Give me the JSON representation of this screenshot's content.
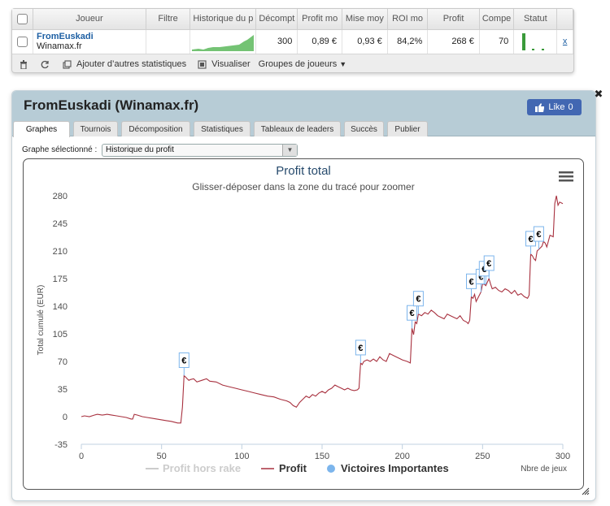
{
  "stats_table": {
    "headers": [
      "Joueur",
      "Filtre",
      "Historique du p",
      "Décompt",
      "Profit mo",
      "Mise moy",
      "ROI mo",
      "Profit",
      "Compe",
      "Statut"
    ],
    "row": {
      "player_name": "FromEuskadi",
      "player_site": "Winamax.fr",
      "decompte": "300",
      "profit_moyen": "0,89 €",
      "mise_moyenne": "0,93 €",
      "roi_moyen": "84,2%",
      "profit": "268 €",
      "competitions": "70",
      "remove": "x"
    },
    "toolbar": {
      "add_stats": "Ajouter d’autres statistiques",
      "visualize": "Visualiser",
      "groups": "Groupes de joueurs"
    }
  },
  "profile": {
    "title": "FromEuskadi (Winamax.fr)",
    "like_label": "Like",
    "like_count": "0",
    "tabs": [
      "Graphes",
      "Tournois",
      "Décomposition",
      "Statistiques",
      "Tableaux de leaders",
      "Succès",
      "Publier"
    ],
    "active_tab": "Graphes",
    "graph_select_label": "Graphe sélectionné :",
    "graph_select_value": "Historique du profit"
  },
  "colors": {
    "profit_line": "#a8313f",
    "victory_marker": "#7cb5ec",
    "axis_text": "#4d4d4d",
    "title": "#274b6d",
    "legend_hidden": "#cccccc",
    "header_bg": "#b7ccd6",
    "sparkline": "#3a9a3a",
    "facebook": "#4267b2"
  },
  "chart_data": {
    "type": "line",
    "title": "Profit total",
    "subtitle": "Glisser-déposer dans la zone du tracé pour zoomer",
    "xlabel": "Nbre de jeux",
    "ylabel": "Total cumulé (EUR)",
    "xlim": [
      0,
      300
    ],
    "ylim": [
      -35,
      280
    ],
    "x_ticks": [
      0,
      50,
      100,
      150,
      200,
      250,
      300
    ],
    "y_ticks": [
      -35,
      0,
      35,
      70,
      105,
      140,
      175,
      210,
      245,
      280
    ],
    "legend": [
      "Profit hors rake",
      "Profit",
      "Victoires Importantes"
    ],
    "legend_hidden": [
      "Profit hors rake"
    ],
    "marker_symbol": "€",
    "series": [
      {
        "name": "Profit",
        "points": [
          [
            0,
            0
          ],
          [
            2,
            1
          ],
          [
            5,
            0
          ],
          [
            8,
            2
          ],
          [
            10,
            3
          ],
          [
            13,
            2
          ],
          [
            16,
            3
          ],
          [
            19,
            2
          ],
          [
            22,
            1
          ],
          [
            25,
            0
          ],
          [
            28,
            -1
          ],
          [
            31,
            -3
          ],
          [
            32,
            -3
          ],
          [
            33,
            3
          ],
          [
            35,
            2
          ],
          [
            38,
            0
          ],
          [
            41,
            -1
          ],
          [
            44,
            -2
          ],
          [
            47,
            -3
          ],
          [
            50,
            -4
          ],
          [
            53,
            -5
          ],
          [
            56,
            -6
          ],
          [
            58,
            -7
          ],
          [
            60,
            -8
          ],
          [
            62,
            -8
          ],
          [
            63,
            12
          ],
          [
            64,
            52
          ],
          [
            65,
            50
          ],
          [
            66,
            48
          ],
          [
            67,
            46
          ],
          [
            68,
            47
          ],
          [
            70,
            48
          ],
          [
            72,
            44
          ],
          [
            75,
            46
          ],
          [
            78,
            48
          ],
          [
            80,
            45
          ],
          [
            84,
            44
          ],
          [
            88,
            40
          ],
          [
            92,
            38
          ],
          [
            96,
            36
          ],
          [
            100,
            34
          ],
          [
            104,
            32
          ],
          [
            108,
            30
          ],
          [
            112,
            28
          ],
          [
            116,
            26
          ],
          [
            120,
            25
          ],
          [
            124,
            22
          ],
          [
            128,
            20
          ],
          [
            130,
            18
          ],
          [
            132,
            14
          ],
          [
            134,
            12
          ],
          [
            136,
            18
          ],
          [
            138,
            22
          ],
          [
            140,
            26
          ],
          [
            142,
            24
          ],
          [
            144,
            28
          ],
          [
            146,
            26
          ],
          [
            148,
            30
          ],
          [
            150,
            32
          ],
          [
            152,
            30
          ],
          [
            154,
            34
          ],
          [
            156,
            36
          ],
          [
            158,
            40
          ],
          [
            160,
            38
          ],
          [
            162,
            36
          ],
          [
            164,
            34
          ],
          [
            166,
            36
          ],
          [
            168,
            34
          ],
          [
            170,
            33
          ],
          [
            172,
            34
          ],
          [
            173,
            36
          ],
          [
            174,
            68
          ],
          [
            175,
            66
          ],
          [
            176,
            70
          ],
          [
            178,
            72
          ],
          [
            180,
            70
          ],
          [
            182,
            73
          ],
          [
            184,
            70
          ],
          [
            186,
            76
          ],
          [
            188,
            72
          ],
          [
            190,
            70
          ],
          [
            192,
            80
          ],
          [
            194,
            78
          ],
          [
            196,
            76
          ],
          [
            198,
            74
          ],
          [
            200,
            72
          ],
          [
            203,
            70
          ],
          [
            205,
            68
          ],
          [
            206,
            112
          ],
          [
            207,
            104
          ],
          [
            208,
            120
          ],
          [
            209,
            118
          ],
          [
            210,
            130
          ],
          [
            212,
            128
          ],
          [
            214,
            132
          ],
          [
            216,
            130
          ],
          [
            218,
            135
          ],
          [
            220,
            132
          ],
          [
            222,
            128
          ],
          [
            224,
            126
          ],
          [
            226,
            124
          ],
          [
            228,
            130
          ],
          [
            230,
            128
          ],
          [
            232,
            126
          ],
          [
            234,
            124
          ],
          [
            236,
            128
          ],
          [
            238,
            122
          ],
          [
            240,
            120
          ],
          [
            241,
            118
          ],
          [
            242,
            122
          ],
          [
            243,
            152
          ],
          [
            244,
            150
          ],
          [
            245,
            155
          ],
          [
            246,
            146
          ],
          [
            248,
            154
          ],
          [
            249,
            158
          ],
          [
            250,
            168
          ],
          [
            251,
            168
          ],
          [
            252,
            166
          ],
          [
            254,
            175
          ],
          [
            255,
            168
          ],
          [
            256,
            162
          ],
          [
            258,
            164
          ],
          [
            260,
            160
          ],
          [
            262,
            158
          ],
          [
            264,
            162
          ],
          [
            266,
            160
          ],
          [
            268,
            156
          ],
          [
            270,
            160
          ],
          [
            272,
            154
          ],
          [
            274,
            156
          ],
          [
            276,
            152
          ],
          [
            278,
            150
          ],
          [
            279,
            154
          ],
          [
            280,
            206
          ],
          [
            281,
            204
          ],
          [
            282,
            200
          ],
          [
            283,
            198
          ],
          [
            284,
            210
          ],
          [
            285,
            212
          ],
          [
            286,
            214
          ],
          [
            287,
            216
          ],
          [
            288,
            222
          ],
          [
            289,
            220
          ],
          [
            290,
            215
          ],
          [
            292,
            230
          ],
          [
            294,
            228
          ],
          [
            295,
            270
          ],
          [
            296,
            280
          ],
          [
            297,
            268
          ],
          [
            298,
            272
          ],
          [
            300,
            270
          ]
        ]
      },
      {
        "name": "Victoires Importantes",
        "points": [
          [
            64,
            52
          ],
          [
            174,
            68
          ],
          [
            206,
            112
          ],
          [
            210,
            130
          ],
          [
            243,
            152
          ],
          [
            249,
            158
          ],
          [
            251,
            168
          ],
          [
            254,
            175
          ],
          [
            280,
            206
          ],
          [
            285,
            212
          ]
        ]
      }
    ],
    "grid": false
  }
}
